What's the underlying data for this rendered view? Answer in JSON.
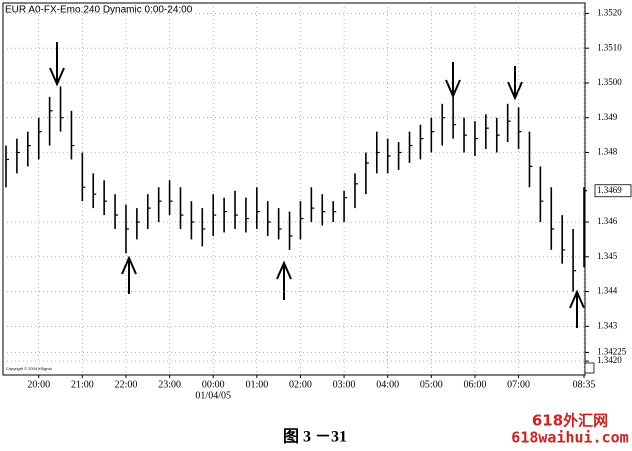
{
  "chart_data": {
    "type": "ohlc",
    "title": "EUR A0-FX-Emo.240 Dynamic 0:00-24:00",
    "copyright": "Copyright © 2004 eSignal",
    "date_label": "01/04/05",
    "caption": "图 3 －31",
    "watermark": [
      "618外汇网",
      "618waihui.com"
    ],
    "categories": [
      null,
      null,
      null,
      "20:00",
      null,
      null,
      null,
      "21:00",
      null,
      null,
      null,
      "22:00",
      null,
      null,
      null,
      "23:00",
      null,
      null,
      null,
      "00:00",
      null,
      null,
      null,
      "01:00",
      null,
      null,
      null,
      "02:00",
      null,
      null,
      null,
      "03:00",
      null,
      null,
      null,
      "04:00",
      null,
      null,
      null,
      "05:00",
      null,
      null,
      null,
      "06:00",
      null,
      null,
      null,
      "07:00",
      null,
      null,
      null,
      null,
      null,
      "08:35"
    ],
    "high": [
      1.3482,
      1.3484,
      1.3486,
      1.349,
      1.3496,
      1.3499,
      1.3492,
      1.348,
      1.3474,
      1.3472,
      1.3468,
      1.3465,
      1.3464,
      1.3468,
      1.347,
      1.3472,
      1.347,
      1.3466,
      1.3464,
      1.3468,
      1.3467,
      1.3469,
      1.3467,
      1.347,
      1.3466,
      1.3464,
      1.3463,
      1.3466,
      1.347,
      1.3468,
      1.3466,
      1.3469,
      1.3474,
      1.348,
      1.3486,
      1.3484,
      1.3483,
      1.3486,
      1.3488,
      1.349,
      1.3494,
      1.3496,
      1.349,
      1.3489,
      1.3491,
      1.349,
      1.3494,
      1.3493,
      1.3486,
      1.3476,
      1.347,
      1.3462,
      1.3458,
      1.347
    ],
    "low": [
      1.347,
      1.3474,
      1.3476,
      1.3478,
      1.3482,
      1.3486,
      1.3478,
      1.3466,
      1.3464,
      1.3462,
      1.3458,
      1.3451,
      1.3455,
      1.3458,
      1.346,
      1.3462,
      1.3458,
      1.3455,
      1.3453,
      1.3456,
      1.3457,
      1.3458,
      1.3457,
      1.3458,
      1.3456,
      1.3455,
      1.3452,
      1.3455,
      1.346,
      1.3459,
      1.346,
      1.346,
      1.3464,
      1.3468,
      1.3474,
      1.3474,
      1.3475,
      1.3477,
      1.3478,
      1.348,
      1.3482,
      1.3484,
      1.348,
      1.3479,
      1.3481,
      1.348,
      1.3483,
      1.3481,
      1.347,
      1.346,
      1.3452,
      1.3448,
      1.344,
      1.3447
    ],
    "close": [
      1.3478,
      1.348,
      1.3482,
      1.3486,
      1.3492,
      1.349,
      1.3482,
      1.347,
      1.3468,
      1.3466,
      1.3462,
      1.3458,
      1.346,
      1.3464,
      1.3466,
      1.3466,
      1.3462,
      1.346,
      1.3458,
      1.3462,
      1.3463,
      1.3462,
      1.3461,
      1.3463,
      1.346,
      1.3458,
      1.3456,
      1.3461,
      1.3464,
      1.3463,
      1.3463,
      1.3467,
      1.3471,
      1.3477,
      1.348,
      1.3479,
      1.348,
      1.3482,
      1.3484,
      1.3486,
      1.349,
      1.3488,
      1.3485,
      1.3484,
      1.3487,
      1.3485,
      1.3489,
      1.3486,
      1.3476,
      1.3466,
      1.3458,
      1.3452,
      1.3446,
      1.3469
    ],
    "color": "#000000",
    "current_price": 1.3469,
    "ylim": [
      1.3416,
      1.3523
    ],
    "yticks": [
      {
        "value": 1.352,
        "label": "1.3520"
      },
      {
        "value": 1.351,
        "label": "1.3510"
      },
      {
        "value": 1.35,
        "label": "1.3500"
      },
      1.349,
      1.348,
      1.346,
      1.345,
      1.344,
      1.343,
      1.34225,
      {
        "value": 1.342,
        "label": "1.3420"
      }
    ],
    "grid": true
  }
}
